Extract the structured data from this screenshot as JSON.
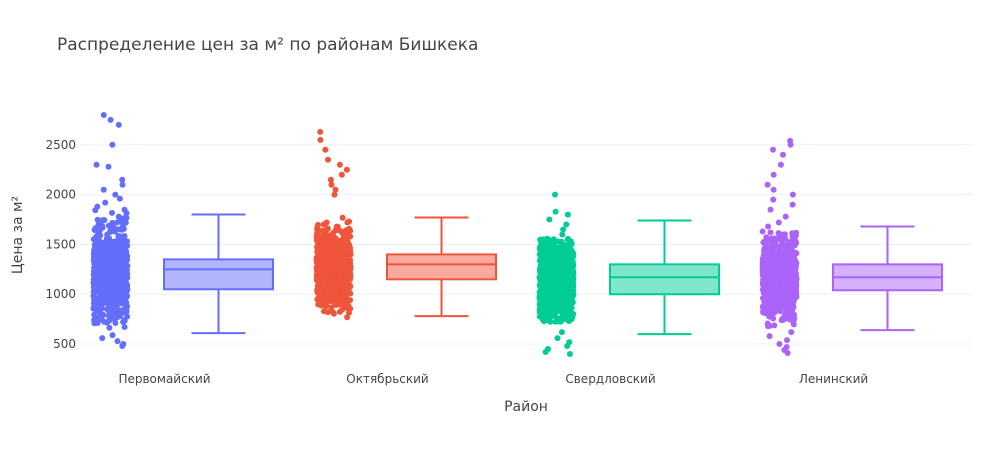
{
  "chart_data": {
    "type": "box",
    "title": "Распределение цен за м² по районам Бишкека",
    "xlabel": "Район",
    "ylabel": "Цена за м²",
    "y_ticks": [
      500,
      1000,
      1500,
      2000,
      2500
    ],
    "ylim": [
      390,
      2900
    ],
    "grid": true,
    "legend": "none",
    "categories": [
      "Первомайский",
      "Октябрьский",
      "Свердловский",
      "Ленинский"
    ],
    "series": [
      {
        "category": "Первомайский",
        "color": "#636EFA",
        "fill": "#B1B6FC",
        "min": 610,
        "q1": 1050,
        "median": 1250,
        "q3": 1350,
        "max": 1800,
        "points_range": [
          650,
          1850
        ],
        "outliers": [
          480,
          500,
          530,
          560,
          590,
          1880,
          1920,
          1960,
          2000,
          2050,
          2100,
          2150,
          2280,
          2300,
          2500,
          2700,
          2750,
          2800
        ]
      },
      {
        "category": "Октябрьский",
        "color": "#EF553B",
        "fill": "#F7AA9D",
        "min": 780,
        "q1": 1150,
        "median": 1300,
        "q3": 1400,
        "max": 1770,
        "points_range": [
          730,
          1950
        ],
        "outliers": [
          2000,
          2050,
          2100,
          2150,
          2200,
          2250,
          2300,
          2350,
          2450,
          2550,
          2630
        ]
      },
      {
        "category": "Свердловский",
        "color": "#00CC96",
        "fill": "#80E6CB",
        "min": 600,
        "q1": 1000,
        "median": 1170,
        "q3": 1300,
        "max": 1740,
        "points_range": [
          720,
          1560
        ],
        "outliers": [
          400,
          420,
          450,
          480,
          520,
          560,
          620,
          1600,
          1650,
          1700,
          1750,
          1800,
          1830,
          2000
        ]
      },
      {
        "category": "Ленинский",
        "color": "#AB63FA",
        "fill": "#D5B1FC",
        "min": 640,
        "q1": 1040,
        "median": 1170,
        "q3": 1300,
        "max": 1680,
        "points_range": [
          660,
          1640
        ],
        "outliers": [
          410,
          440,
          470,
          500,
          540,
          580,
          620,
          1680,
          1720,
          1780,
          1850,
          1900,
          1950,
          2000,
          2050,
          2100,
          2200,
          2300,
          2400,
          2450,
          2500,
          2540
        ]
      }
    ]
  }
}
